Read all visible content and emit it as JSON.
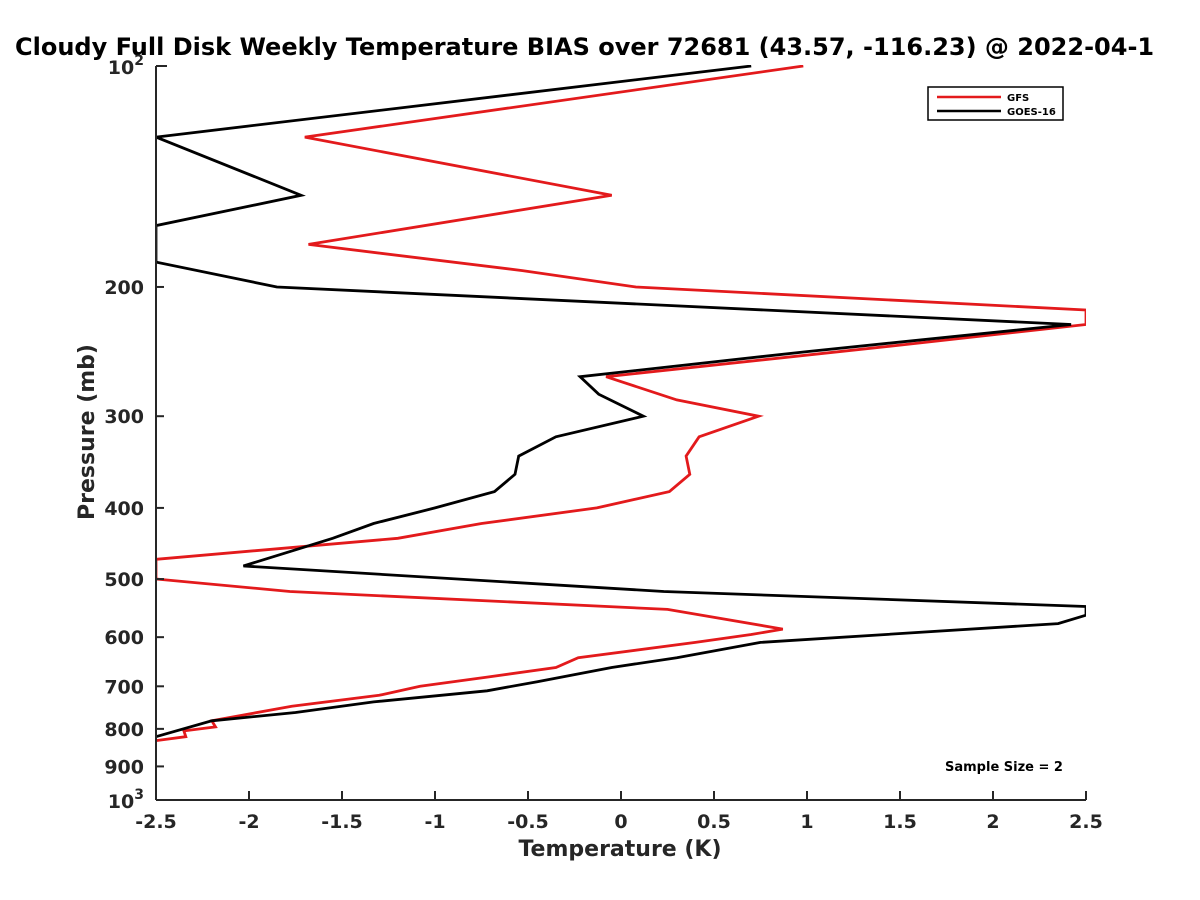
{
  "chart_data": {
    "type": "line",
    "title": "Cloudy Full Disk Weekly Temperature BIAS over 72681 (43.57, -116.23) @ 2022-04-1",
    "xlabel": "Temperature (K)",
    "ylabel": "Pressure (mb)",
    "xlim": [
      -2.5,
      2.5
    ],
    "ylim": [
      1000,
      100
    ],
    "y_scale": "log",
    "y_reversed": true,
    "grid": false,
    "legend_position": "top-right",
    "x_ticks": [
      -2.5,
      -2,
      -1.5,
      -1,
      -0.5,
      0,
      0.5,
      1,
      1.5,
      2,
      2.5
    ],
    "x_tick_labels": [
      "-2.5",
      "-2",
      "-1.5",
      "-1",
      "-0.5",
      "0",
      "0.5",
      "1",
      "1.5",
      "2",
      "2.5"
    ],
    "y_ticks": [
      200,
      300,
      400,
      500,
      600,
      700,
      800,
      900
    ],
    "y_tick_labels": [
      "200",
      "300",
      "400",
      "500",
      "600",
      "700",
      "800",
      "900"
    ],
    "y_tick_power_top": {
      "base": "10",
      "exp": "2",
      "value": 100
    },
    "y_tick_power_bottom": {
      "base": "10",
      "exp": "3",
      "value": 1000
    },
    "series": [
      {
        "name": "GFS",
        "color": "#e31a1c",
        "points": [
          [
            0.98,
            100
          ],
          [
            -1.7,
            125
          ],
          [
            -0.05,
            150
          ],
          [
            -1.68,
            175
          ],
          [
            -0.53,
            190
          ],
          [
            0.08,
            200
          ],
          [
            2.5,
            215
          ],
          [
            2.5,
            225
          ],
          [
            1.5,
            240
          ],
          [
            -0.08,
            265
          ],
          [
            0.3,
            285
          ],
          [
            0.74,
            300
          ],
          [
            0.42,
            320
          ],
          [
            0.35,
            340
          ],
          [
            0.37,
            360
          ],
          [
            0.26,
            380
          ],
          [
            -0.13,
            400
          ],
          [
            -0.75,
            420
          ],
          [
            -1.2,
            440
          ],
          [
            -2.5,
            470
          ],
          [
            -2.5,
            500
          ],
          [
            -1.78,
            520
          ],
          [
            0.25,
            550
          ],
          [
            0.87,
            585
          ],
          [
            0.7,
            595
          ],
          [
            0.4,
            610
          ],
          [
            -0.23,
            640
          ],
          [
            -0.35,
            660
          ],
          [
            -0.72,
            680
          ],
          [
            -1.08,
            700
          ],
          [
            -1.3,
            720
          ],
          [
            -1.77,
            745
          ],
          [
            -2.2,
            780
          ],
          [
            -2.18,
            795
          ],
          [
            -2.35,
            805
          ],
          [
            -2.34,
            820
          ],
          [
            -2.5,
            830
          ]
        ]
      },
      {
        "name": "GOES-16",
        "color": "#000000",
        "points": [
          [
            0.7,
            100
          ],
          [
            -2.5,
            125
          ],
          [
            -1.72,
            150
          ],
          [
            -2.5,
            165
          ],
          [
            -2.5,
            185
          ],
          [
            -1.85,
            200
          ],
          [
            2.42,
            225
          ],
          [
            1.0,
            245
          ],
          [
            -0.22,
            265
          ],
          [
            -0.12,
            280
          ],
          [
            0.12,
            300
          ],
          [
            -0.35,
            320
          ],
          [
            -0.55,
            340
          ],
          [
            -0.57,
            360
          ],
          [
            -0.68,
            380
          ],
          [
            -1.0,
            400
          ],
          [
            -1.33,
            420
          ],
          [
            -1.55,
            440
          ],
          [
            -2.03,
            480
          ],
          [
            0.23,
            520
          ],
          [
            2.5,
            545
          ],
          [
            2.5,
            560
          ],
          [
            2.35,
            575
          ],
          [
            0.75,
            610
          ],
          [
            0.3,
            640
          ],
          [
            -0.05,
            660
          ],
          [
            -0.45,
            690
          ],
          [
            -0.72,
            710
          ],
          [
            -1.33,
            735
          ],
          [
            -1.75,
            760
          ],
          [
            -2.2,
            780
          ],
          [
            -2.5,
            820
          ]
        ]
      }
    ],
    "annotations": [
      "Sample Size = 2"
    ]
  }
}
